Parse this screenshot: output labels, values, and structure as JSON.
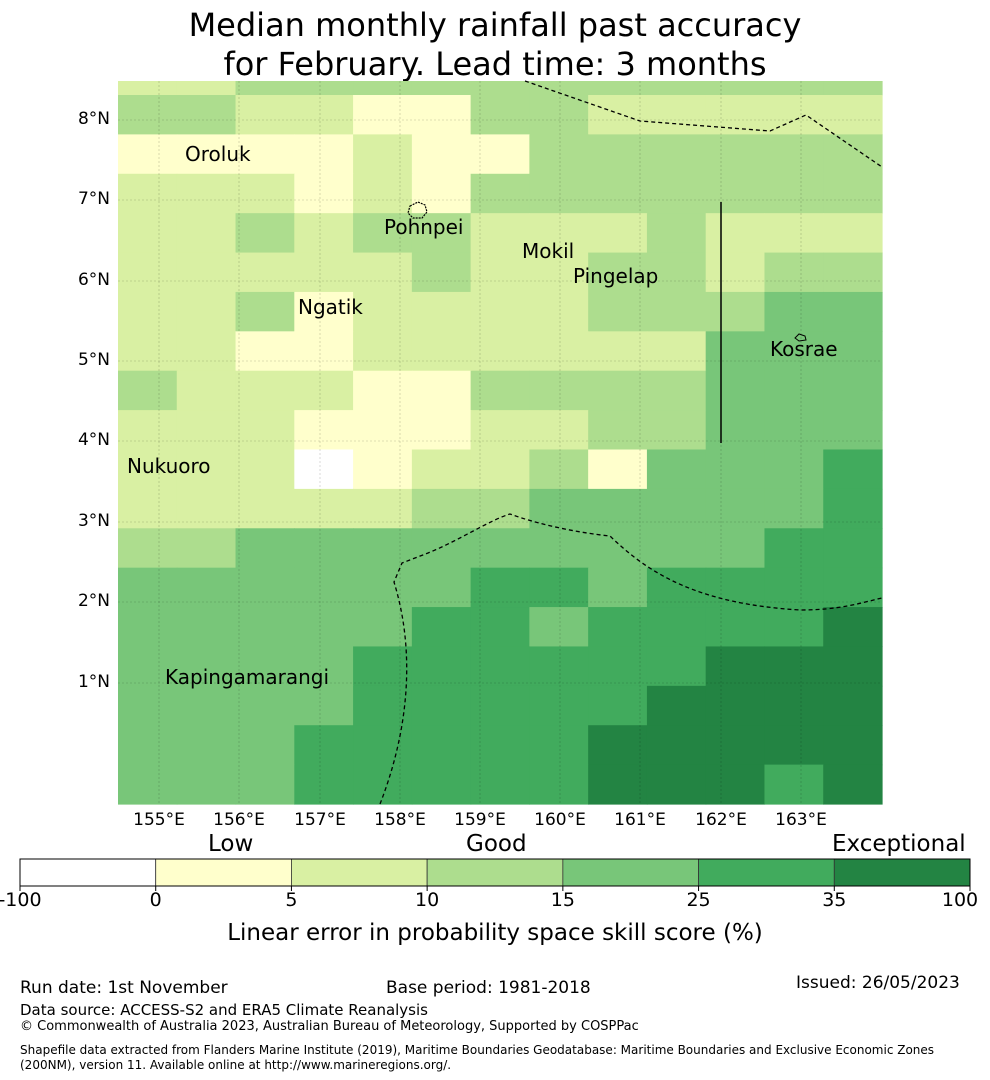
{
  "title": {
    "line1": "Median monthly rainfall past accuracy",
    "line2": "for February. Lead time: 3 months"
  },
  "axes": {
    "lon_ticks": [
      "155°E",
      "156°E",
      "157°E",
      "158°E",
      "159°E",
      "160°E",
      "161°E",
      "162°E",
      "163°E"
    ],
    "lat_ticks": [
      "8°N",
      "7°N",
      "6°N",
      "5°N",
      "4°N",
      "3°N",
      "2°N",
      "1°N"
    ]
  },
  "places": [
    "Oroluk",
    "Pohnpei",
    "Mokil",
    "Pingelap",
    "Ngatik",
    "Kosrae",
    "Nukuoro",
    "Kapingamarangi"
  ],
  "colorbar": {
    "categories": [
      "Low",
      "Good",
      "Exceptional"
    ],
    "ticks": [
      "-100",
      "0",
      "5",
      "10",
      "15",
      "25",
      "35",
      "100"
    ],
    "colors": [
      "#ffffff",
      "#ffffcc",
      "#d9f0a3",
      "#addd8e",
      "#78c679",
      "#41ab5d",
      "#238443"
    ],
    "label": "Linear error in probability space skill score (%)"
  },
  "footer": {
    "run_date": "Run date: 1st November",
    "base_period": "Base period: 1981-2018",
    "issued": "Issued: 26/05/2023",
    "data_source": "Data source: ACCESS-S2 and ERA5 Climate Reanalysis",
    "copyright": "© Commonwealth of Australia 2023, Australian Bureau of Meteorology, Supported by COSPPac",
    "shapefile_line1": "Shapefile data extracted from Flanders Marine Institute (2019), Maritime Boundaries Geodatabase: Maritime Boundaries and Exclusive Economic Zones",
    "shapefile_line2": "(200NM), version 11. Available online at http://www.marineregions.org/."
  },
  "chart_data": {
    "type": "heatmap",
    "title": "Median monthly rainfall past accuracy for February. Lead time: 3 months",
    "xlabel": "",
    "ylabel": "",
    "lon_range": [
      154.5,
      164.0
    ],
    "lat_range": [
      -0.3,
      8.5
    ],
    "grid_step_deg": 0.833,
    "rows_north_to_south": [
      [
        2,
        2,
        3,
        3,
        3,
        3,
        3,
        3,
        3,
        3,
        3,
        3,
        3
      ],
      [
        3,
        3,
        2,
        2,
        1,
        1,
        3,
        3,
        2,
        2,
        2,
        2,
        2
      ],
      [
        1,
        1,
        1,
        1,
        2,
        1,
        1,
        3,
        3,
        3,
        3,
        3,
        3
      ],
      [
        2,
        2,
        2,
        1,
        2,
        1,
        3,
        3,
        3,
        3,
        3,
        3,
        3
      ],
      [
        2,
        2,
        3,
        2,
        3,
        3,
        2,
        2,
        2,
        3,
        2,
        2,
        2
      ],
      [
        2,
        2,
        2,
        2,
        2,
        3,
        2,
        2,
        3,
        3,
        2,
        3,
        3
      ],
      [
        2,
        2,
        3,
        1,
        2,
        2,
        2,
        2,
        3,
        3,
        3,
        4,
        4
      ],
      [
        2,
        2,
        1,
        1,
        2,
        2,
        2,
        2,
        2,
        2,
        4,
        4,
        4
      ],
      [
        3,
        2,
        2,
        2,
        1,
        1,
        3,
        3,
        3,
        3,
        4,
        4,
        4
      ],
      [
        2,
        2,
        2,
        1,
        1,
        1,
        2,
        2,
        3,
        3,
        4,
        4,
        4
      ],
      [
        2,
        2,
        2,
        0,
        1,
        2,
        2,
        3,
        1,
        4,
        4,
        4,
        5
      ],
      [
        2,
        2,
        2,
        2,
        2,
        3,
        3,
        4,
        4,
        4,
        4,
        4,
        5
      ],
      [
        3,
        3,
        4,
        4,
        4,
        4,
        4,
        4,
        4,
        4,
        4,
        5,
        5
      ],
      [
        4,
        4,
        4,
        4,
        4,
        4,
        5,
        5,
        4,
        5,
        5,
        5,
        5
      ],
      [
        4,
        4,
        4,
        4,
        4,
        5,
        5,
        4,
        5,
        5,
        5,
        5,
        6
      ],
      [
        4,
        4,
        4,
        4,
        5,
        5,
        5,
        5,
        5,
        5,
        6,
        6,
        6
      ],
      [
        4,
        4,
        4,
        4,
        5,
        5,
        5,
        5,
        5,
        6,
        6,
        6,
        6
      ],
      [
        4,
        4,
        4,
        5,
        5,
        5,
        5,
        5,
        6,
        6,
        6,
        6,
        6
      ],
      [
        4,
        4,
        4,
        5,
        5,
        5,
        5,
        5,
        6,
        6,
        6,
        5,
        6
      ]
    ],
    "class_labels": [
      "-100 to 0",
      "0 to 5",
      "5 to 10",
      "10 to 15",
      "15 to 25",
      "25 to 35",
      "35 to 100"
    ]
  }
}
